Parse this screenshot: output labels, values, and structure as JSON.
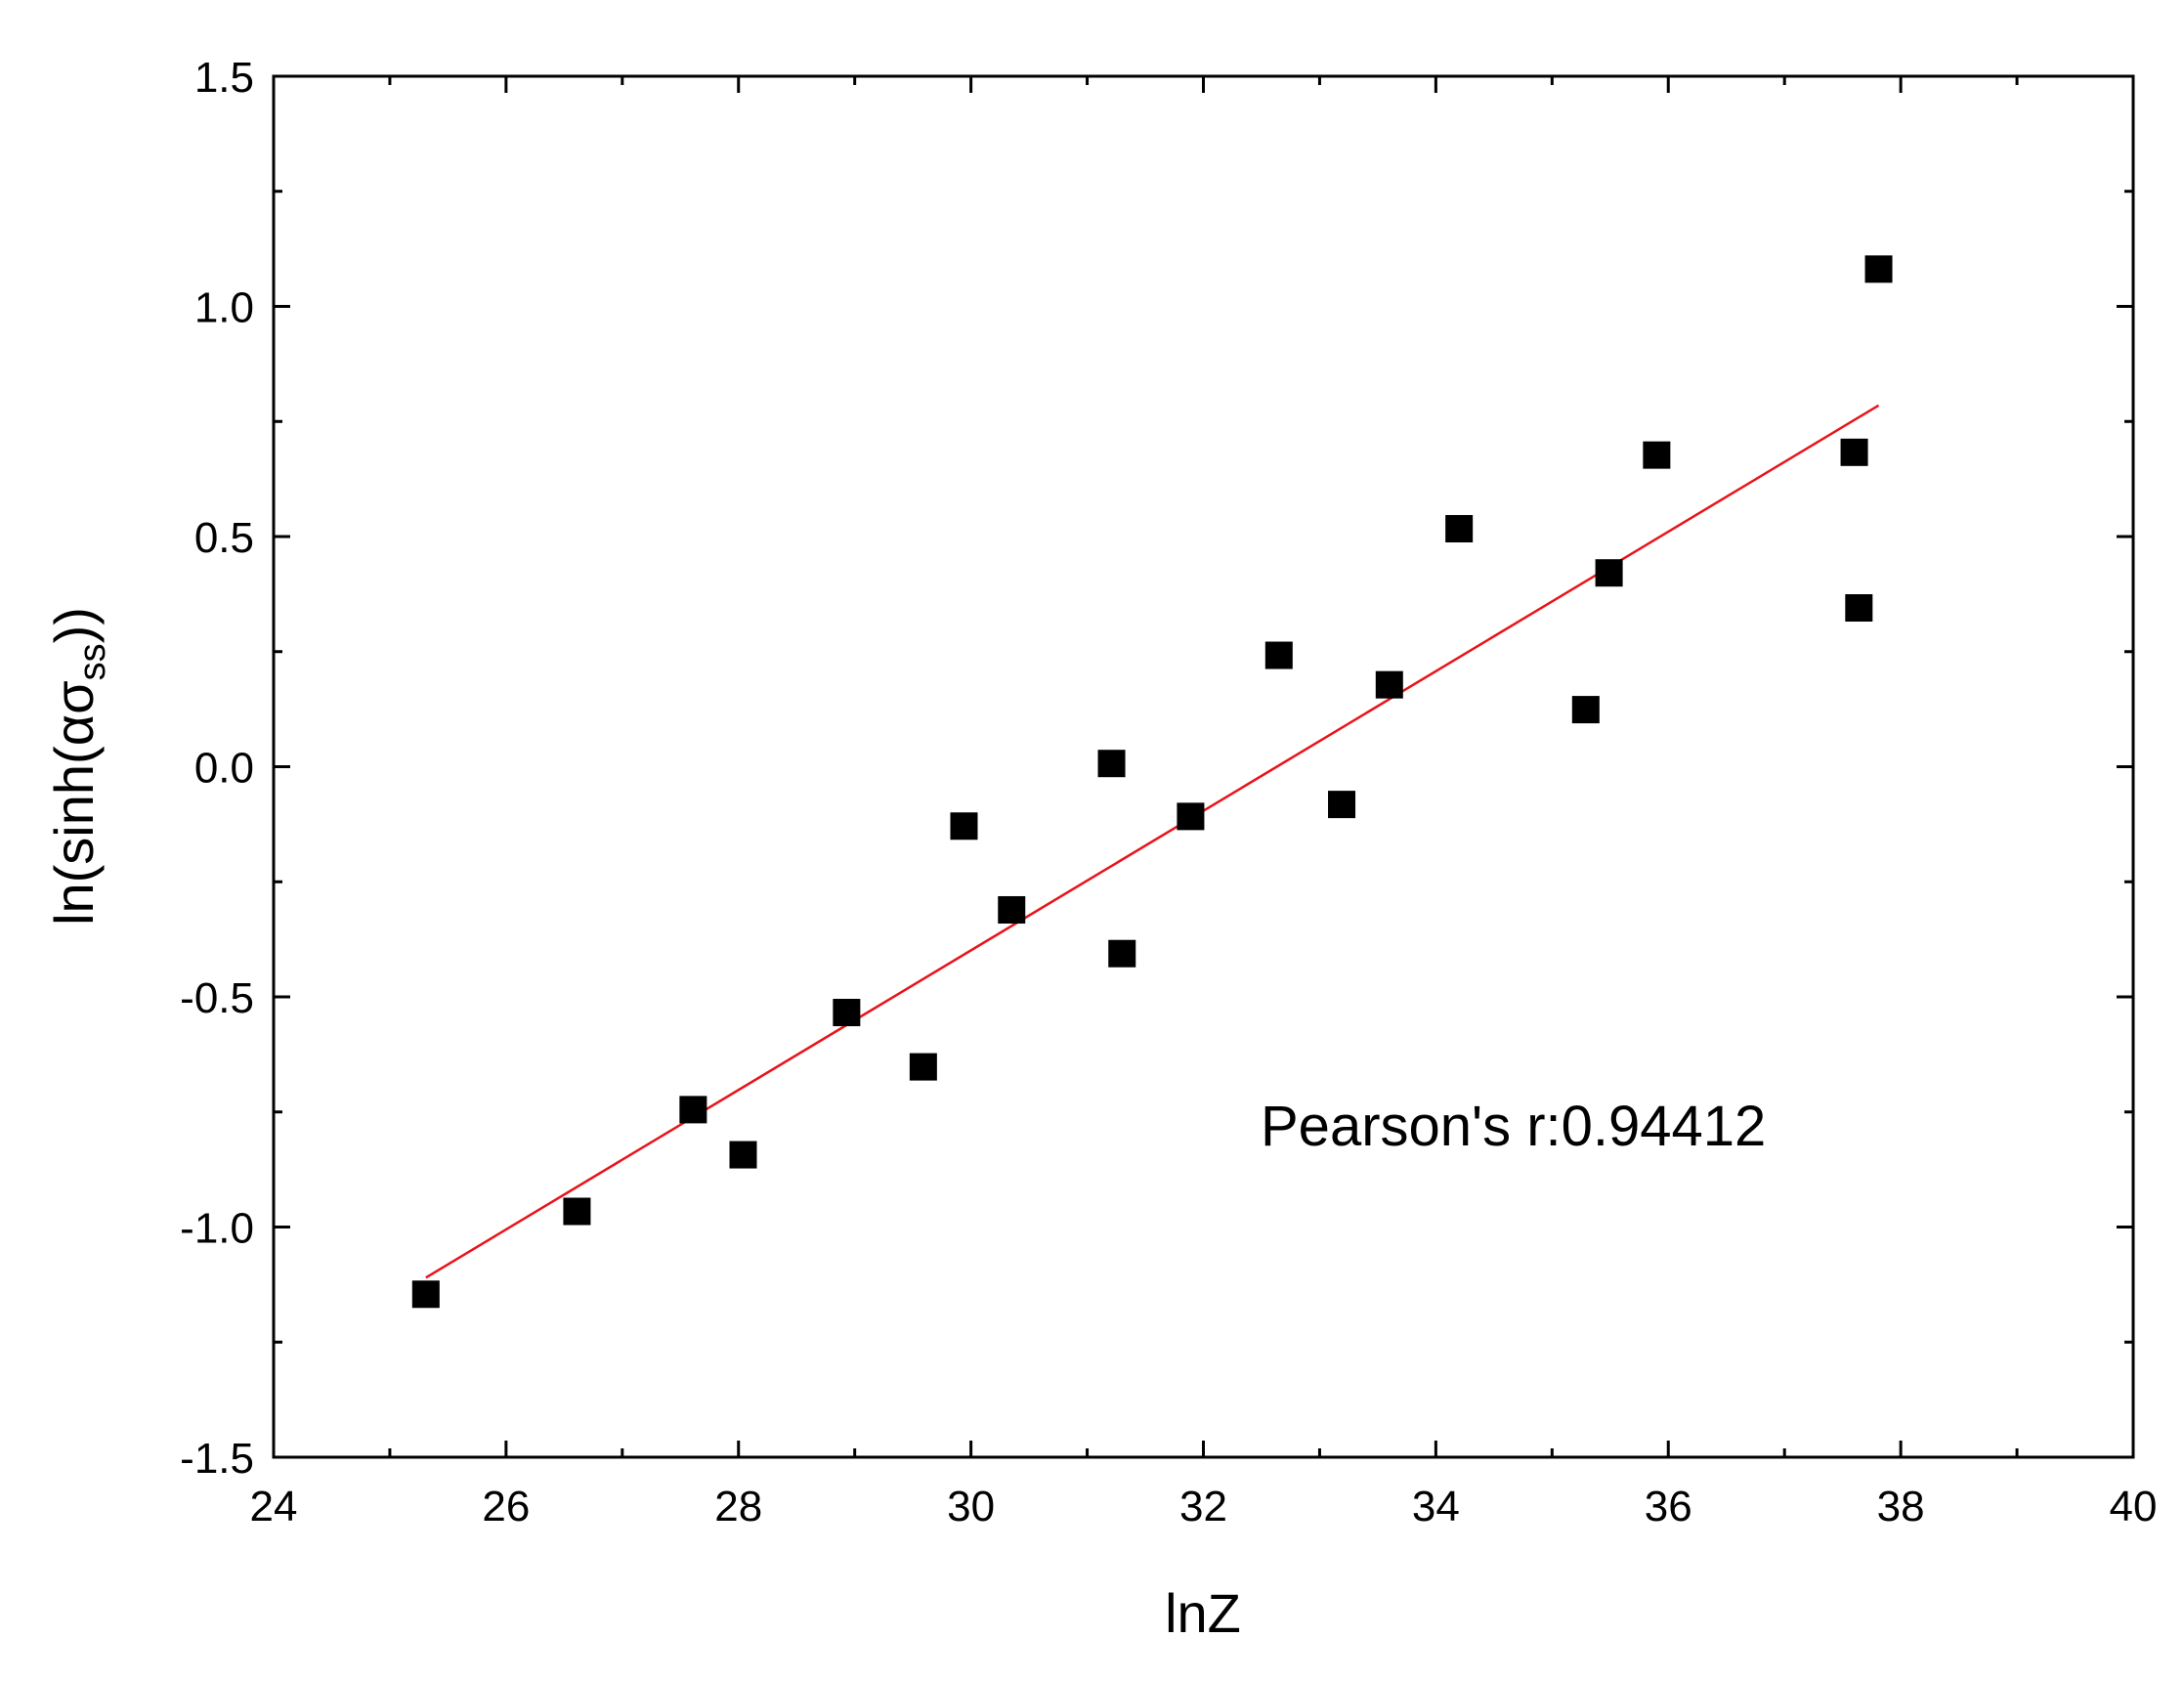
{
  "chart_data": {
    "type": "scatter",
    "xlabel": "lnZ",
    "ylabel_main": "ln(sinh(ασ",
    "ylabel_sub": "ss",
    "ylabel_close": "))",
    "xlim": [
      24,
      40
    ],
    "ylim": [
      -1.5,
      1.5
    ],
    "xticks": [
      24,
      26,
      28,
      30,
      32,
      34,
      36,
      38,
      40
    ],
    "xtick_labels": [
      "24",
      "26",
      "28",
      "30",
      "32",
      "34",
      "36",
      "38",
      "40"
    ],
    "yticks": [
      -1.5,
      -1.0,
      -0.5,
      0.0,
      0.5,
      1.0,
      1.5
    ],
    "ytick_labels": [
      "-1.5",
      "-1.0",
      "-0.5",
      "0.0",
      "0.5",
      "1.0",
      "1.5"
    ],
    "grid": false,
    "annotation": "Pearson's r:0.94412",
    "colors": {
      "points": "#000000",
      "fit_line": "#e8141b",
      "axes": "#000000"
    },
    "series": [
      {
        "marker": "square",
        "x": [
          25.31,
          26.61,
          27.61,
          28.04,
          28.93,
          29.59,
          29.94,
          30.35,
          31.21,
          31.3,
          31.89,
          32.65,
          33.19,
          33.6,
          34.2,
          35.29,
          35.49,
          35.9,
          37.6,
          37.64,
          37.81
        ],
        "y": [
          -1.146,
          -0.966,
          -0.745,
          -0.843,
          -0.534,
          -0.652,
          -0.129,
          -0.311,
          0.007,
          -0.406,
          -0.108,
          0.242,
          -0.082,
          0.178,
          0.517,
          0.124,
          0.421,
          0.677,
          0.683,
          0.345,
          1.081
        ]
      }
    ],
    "fit_line": {
      "x": [
        25.31,
        37.81
      ],
      "y": [
        -1.11,
        0.785
      ]
    }
  }
}
